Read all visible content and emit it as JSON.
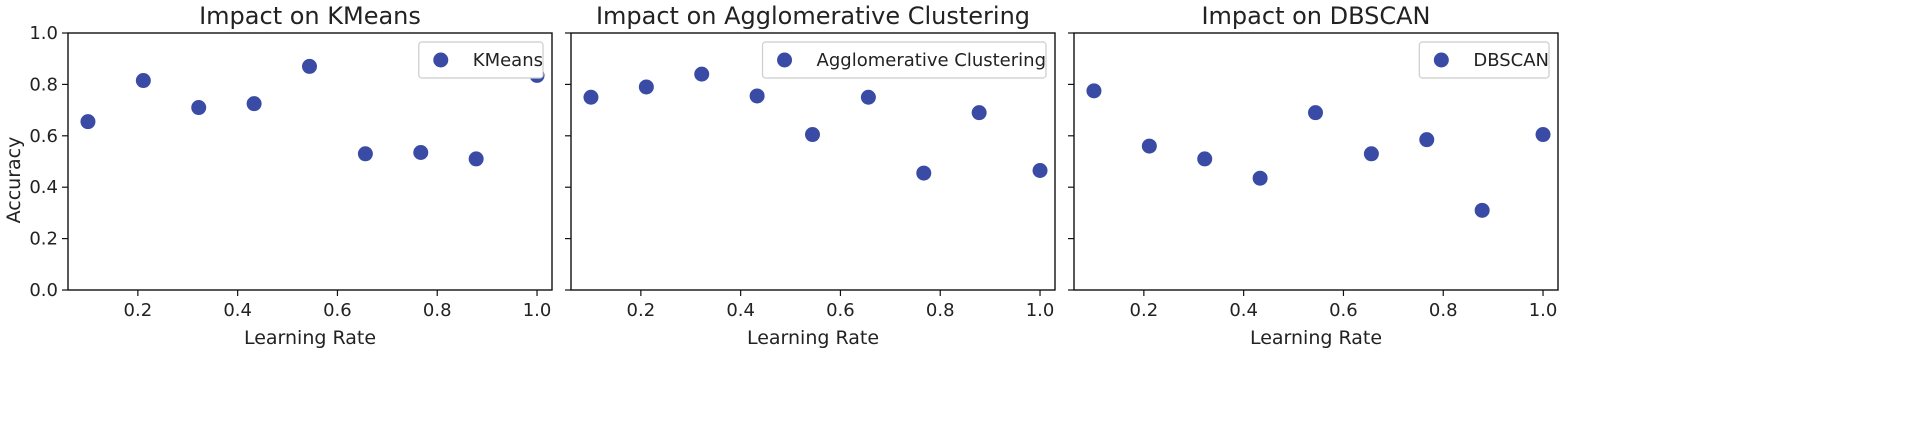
{
  "figure": {
    "ylabel": "Accuracy",
    "marker_color": "#3a4ba6",
    "background": "#ffffff"
  },
  "chart_data": [
    {
      "type": "scatter",
      "title": "Impact on KMeans",
      "xlabel": "Learning Rate",
      "ylabel": "Accuracy",
      "legend": "KMeans",
      "legend_position": "top-right",
      "xlim": [
        0.06,
        1.03
      ],
      "ylim": [
        0.0,
        1.0
      ],
      "xticks": [
        "0.2",
        "0.4",
        "0.6",
        "0.8",
        "1.0"
      ],
      "yticks": [
        "0.0",
        "0.2",
        "0.4",
        "0.6",
        "0.8",
        "1.0"
      ],
      "grid": false,
      "x": [
        0.1,
        0.211,
        0.322,
        0.433,
        0.544,
        0.656,
        0.767,
        0.878,
        1.0
      ],
      "y": [
        0.655,
        0.815,
        0.71,
        0.725,
        0.87,
        0.53,
        0.535,
        0.51,
        0.835
      ]
    },
    {
      "type": "scatter",
      "title": "Impact on Agglomerative Clustering",
      "xlabel": "Learning Rate",
      "ylabel": "",
      "legend": "Agglomerative Clustering",
      "legend_position": "top-right",
      "xlim": [
        0.06,
        1.03
      ],
      "ylim": [
        0.0,
        1.0
      ],
      "xticks": [
        "0.2",
        "0.4",
        "0.6",
        "0.8",
        "1.0"
      ],
      "yticks": [
        "",
        "",
        "",
        "",
        "",
        ""
      ],
      "grid": false,
      "x": [
        0.1,
        0.211,
        0.322,
        0.433,
        0.544,
        0.656,
        0.767,
        0.878,
        1.0
      ],
      "y": [
        0.75,
        0.79,
        0.84,
        0.755,
        0.605,
        0.75,
        0.455,
        0.69,
        0.465
      ]
    },
    {
      "type": "scatter",
      "title": "Impact on DBSCAN",
      "xlabel": "Learning Rate",
      "ylabel": "",
      "legend": "DBSCAN",
      "legend_position": "top-right",
      "xlim": [
        0.06,
        1.03
      ],
      "ylim": [
        0.0,
        1.0
      ],
      "xticks": [
        "0.2",
        "0.4",
        "0.6",
        "0.8",
        "1.0"
      ],
      "yticks": [
        "",
        "",
        "",
        "",
        "",
        ""
      ],
      "grid": false,
      "x": [
        0.1,
        0.211,
        0.322,
        0.433,
        0.544,
        0.656,
        0.767,
        0.878,
        1.0
      ],
      "y": [
        0.775,
        0.56,
        0.51,
        0.435,
        0.69,
        0.53,
        0.585,
        0.31,
        0.605
      ]
    }
  ]
}
